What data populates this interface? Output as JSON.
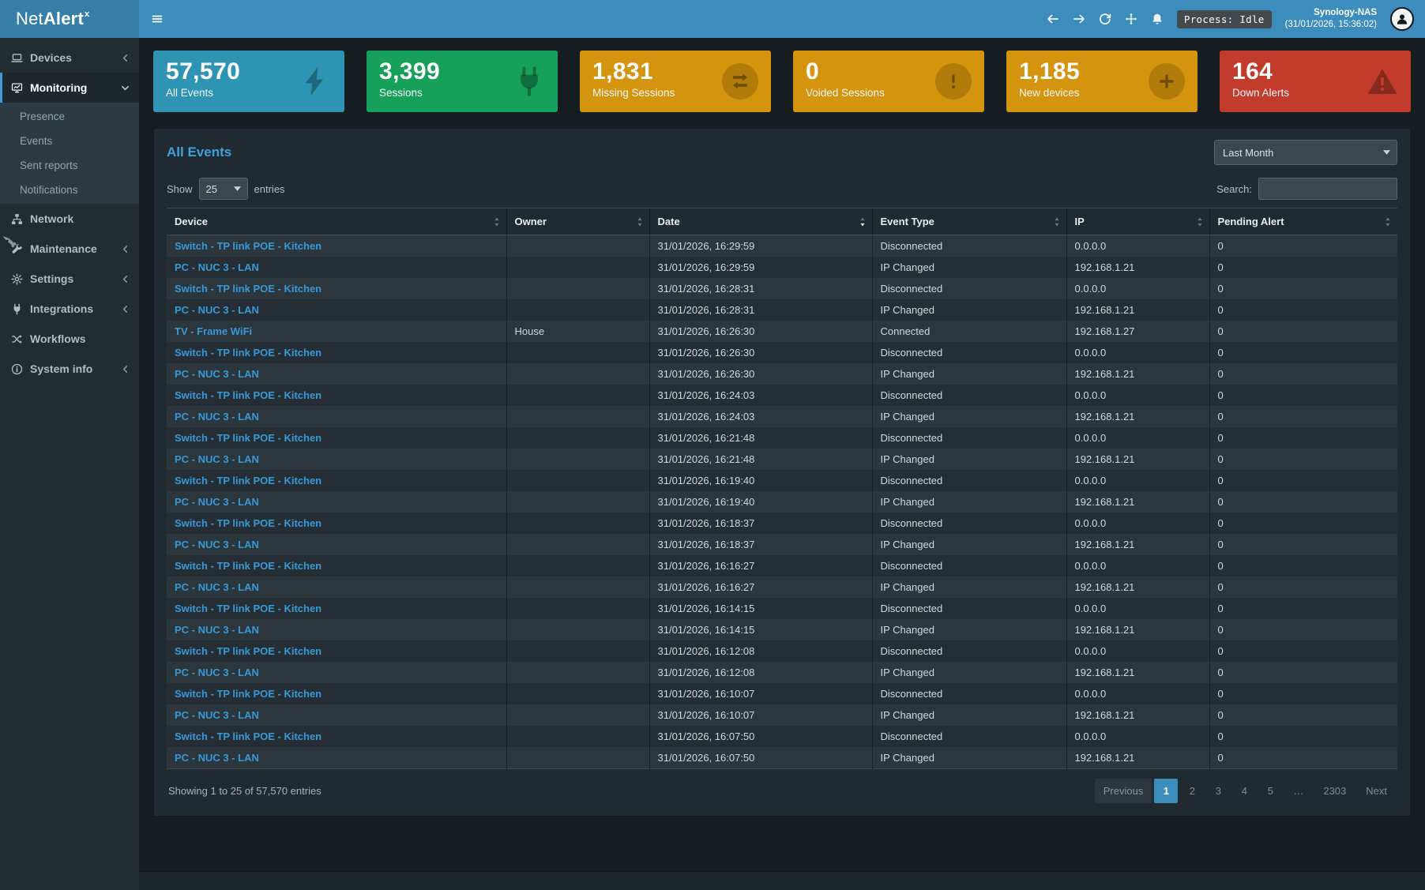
{
  "header": {
    "brand": {
      "pre": "Net",
      "bold": "Alert",
      "sup": "x"
    },
    "process_badge": "Process: Idle",
    "host_name": "Synology-NAS",
    "host_time": "(31/01/2026, 15:36:02)"
  },
  "sidebar": {
    "items": [
      {
        "label": "Devices",
        "icon": "devices-icon",
        "chevron": "left"
      },
      {
        "label": "Monitoring",
        "icon": "monitoring-icon",
        "chevron": "down",
        "active": true,
        "children": [
          "Presence",
          "Events",
          "Sent reports",
          "Notifications"
        ]
      },
      {
        "label": "Network",
        "icon": "network-icon"
      },
      {
        "label": "Maintenance",
        "icon": "maintenance-icon",
        "chevron": "left"
      },
      {
        "label": "Settings",
        "icon": "settings-icon",
        "chevron": "left"
      },
      {
        "label": "Integrations",
        "icon": "integrations-icon",
        "chevron": "left"
      },
      {
        "label": "Workflows",
        "icon": "workflows-icon"
      },
      {
        "label": "System info",
        "icon": "system-info-icon",
        "chevron": "left"
      }
    ]
  },
  "cards": [
    {
      "value": "57,570",
      "label": "All Events",
      "color": "#2d94b3",
      "icon": "bolt-icon",
      "circle": false
    },
    {
      "value": "3,399",
      "label": "Sessions",
      "color": "#17a05a",
      "icon": "plug-card-icon",
      "circle": false
    },
    {
      "value": "1,831",
      "label": "Missing Sessions",
      "color": "#d4940e",
      "icon": "exchange-icon",
      "circle": true
    },
    {
      "value": "0",
      "label": "Voided Sessions",
      "color": "#d4940e",
      "icon": "exclamation-icon",
      "circle": true
    },
    {
      "value": "1,185",
      "label": "New devices",
      "color": "#d4940e",
      "icon": "plus-icon",
      "circle": true
    },
    {
      "value": "164",
      "label": "Down Alerts",
      "color": "#c23b2b",
      "icon": "warning-icon",
      "circle": false
    }
  ],
  "panel": {
    "title": "All Events",
    "period_select": {
      "value": "Last Month"
    },
    "show_entries": {
      "prefix": "Show",
      "value": "25",
      "suffix": "entries"
    },
    "search_label": "Search:",
    "search_value": ""
  },
  "table": {
    "columns": [
      {
        "label": "Device",
        "sort": "none"
      },
      {
        "label": "Owner",
        "sort": "none"
      },
      {
        "label": "Date",
        "sort": "desc"
      },
      {
        "label": "Event Type",
        "sort": "none"
      },
      {
        "label": "IP",
        "sort": "none"
      },
      {
        "label": "Pending Alert",
        "sort": "none"
      }
    ],
    "rows": [
      {
        "device": "Switch - TP link POE - Kitchen",
        "owner": "",
        "date": "31/01/2026, 16:29:59",
        "event_type": "Disconnected",
        "ip": "0.0.0.0",
        "pending": "0"
      },
      {
        "device": "PC - NUC 3 - LAN",
        "owner": "",
        "date": "31/01/2026, 16:29:59",
        "event_type": "IP Changed",
        "ip": "192.168.1.21",
        "pending": "0"
      },
      {
        "device": "Switch - TP link POE - Kitchen",
        "owner": "",
        "date": "31/01/2026, 16:28:31",
        "event_type": "Disconnected",
        "ip": "0.0.0.0",
        "pending": "0"
      },
      {
        "device": "PC - NUC 3 - LAN",
        "owner": "",
        "date": "31/01/2026, 16:28:31",
        "event_type": "IP Changed",
        "ip": "192.168.1.21",
        "pending": "0"
      },
      {
        "device": "TV - Frame WiFi",
        "owner": "House",
        "date": "31/01/2026, 16:26:30",
        "event_type": "Connected",
        "ip": "192.168.1.27",
        "pending": "0"
      },
      {
        "device": "Switch - TP link POE - Kitchen",
        "owner": "",
        "date": "31/01/2026, 16:26:30",
        "event_type": "Disconnected",
        "ip": "0.0.0.0",
        "pending": "0"
      },
      {
        "device": "PC - NUC 3 - LAN",
        "owner": "",
        "date": "31/01/2026, 16:26:30",
        "event_type": "IP Changed",
        "ip": "192.168.1.21",
        "pending": "0"
      },
      {
        "device": "Switch - TP link POE - Kitchen",
        "owner": "",
        "date": "31/01/2026, 16:24:03",
        "event_type": "Disconnected",
        "ip": "0.0.0.0",
        "pending": "0"
      },
      {
        "device": "PC - NUC 3 - LAN",
        "owner": "",
        "date": "31/01/2026, 16:24:03",
        "event_type": "IP Changed",
        "ip": "192.168.1.21",
        "pending": "0"
      },
      {
        "device": "Switch - TP link POE - Kitchen",
        "owner": "",
        "date": "31/01/2026, 16:21:48",
        "event_type": "Disconnected",
        "ip": "0.0.0.0",
        "pending": "0"
      },
      {
        "device": "PC - NUC 3 - LAN",
        "owner": "",
        "date": "31/01/2026, 16:21:48",
        "event_type": "IP Changed",
        "ip": "192.168.1.21",
        "pending": "0"
      },
      {
        "device": "Switch - TP link POE - Kitchen",
        "owner": "",
        "date": "31/01/2026, 16:19:40",
        "event_type": "Disconnected",
        "ip": "0.0.0.0",
        "pending": "0"
      },
      {
        "device": "PC - NUC 3 - LAN",
        "owner": "",
        "date": "31/01/2026, 16:19:40",
        "event_type": "IP Changed",
        "ip": "192.168.1.21",
        "pending": "0"
      },
      {
        "device": "Switch - TP link POE - Kitchen",
        "owner": "",
        "date": "31/01/2026, 16:18:37",
        "event_type": "Disconnected",
        "ip": "0.0.0.0",
        "pending": "0"
      },
      {
        "device": "PC - NUC 3 - LAN",
        "owner": "",
        "date": "31/01/2026, 16:18:37",
        "event_type": "IP Changed",
        "ip": "192.168.1.21",
        "pending": "0"
      },
      {
        "device": "Switch - TP link POE - Kitchen",
        "owner": "",
        "date": "31/01/2026, 16:16:27",
        "event_type": "Disconnected",
        "ip": "0.0.0.0",
        "pending": "0"
      },
      {
        "device": "PC - NUC 3 - LAN",
        "owner": "",
        "date": "31/01/2026, 16:16:27",
        "event_type": "IP Changed",
        "ip": "192.168.1.21",
        "pending": "0"
      },
      {
        "device": "Switch - TP link POE - Kitchen",
        "owner": "",
        "date": "31/01/2026, 16:14:15",
        "event_type": "Disconnected",
        "ip": "0.0.0.0",
        "pending": "0"
      },
      {
        "device": "PC - NUC 3 - LAN",
        "owner": "",
        "date": "31/01/2026, 16:14:15",
        "event_type": "IP Changed",
        "ip": "192.168.1.21",
        "pending": "0"
      },
      {
        "device": "Switch - TP link POE - Kitchen",
        "owner": "",
        "date": "31/01/2026, 16:12:08",
        "event_type": "Disconnected",
        "ip": "0.0.0.0",
        "pending": "0"
      },
      {
        "device": "PC - NUC 3 - LAN",
        "owner": "",
        "date": "31/01/2026, 16:12:08",
        "event_type": "IP Changed",
        "ip": "192.168.1.21",
        "pending": "0"
      },
      {
        "device": "Switch - TP link POE - Kitchen",
        "owner": "",
        "date": "31/01/2026, 16:10:07",
        "event_type": "Disconnected",
        "ip": "0.0.0.0",
        "pending": "0"
      },
      {
        "device": "PC - NUC 3 - LAN",
        "owner": "",
        "date": "31/01/2026, 16:10:07",
        "event_type": "IP Changed",
        "ip": "192.168.1.21",
        "pending": "0"
      },
      {
        "device": "Switch - TP link POE - Kitchen",
        "owner": "",
        "date": "31/01/2026, 16:07:50",
        "event_type": "Disconnected",
        "ip": "0.0.0.0",
        "pending": "0"
      },
      {
        "device": "PC - NUC 3 - LAN",
        "owner": "",
        "date": "31/01/2026, 16:07:50",
        "event_type": "IP Changed",
        "ip": "192.168.1.21",
        "pending": "0"
      }
    ]
  },
  "footer": {
    "showing": "Showing 1 to 25 of 57,570 entries",
    "pagination": [
      {
        "label": "Previous",
        "state": "prev"
      },
      {
        "label": "1",
        "state": "active"
      },
      {
        "label": "2",
        "state": "link"
      },
      {
        "label": "3",
        "state": "link"
      },
      {
        "label": "4",
        "state": "link"
      },
      {
        "label": "5",
        "state": "link"
      },
      {
        "label": "…",
        "state": "ellipsis"
      },
      {
        "label": "2303",
        "state": "link"
      },
      {
        "label": "Next",
        "state": "next"
      }
    ]
  }
}
